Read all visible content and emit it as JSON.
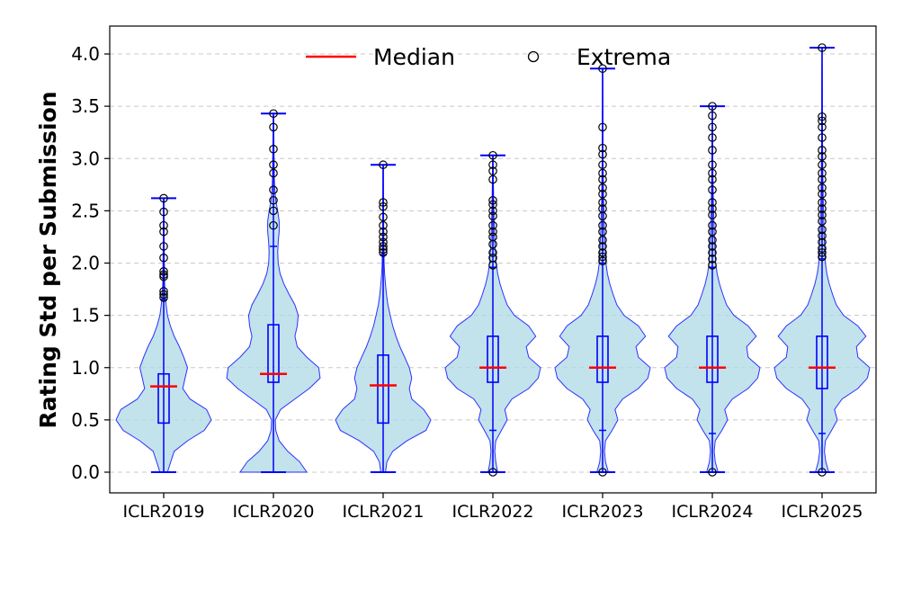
{
  "chart_data": {
    "type": "violin",
    "title": "",
    "xlabel": "",
    "ylabel": "Rating Std per Submission",
    "ylim": [
      -0.2,
      4.3
    ],
    "yticks": [
      "0.0",
      "0.5",
      "1.0",
      "1.5",
      "2.0",
      "2.5",
      "3.0",
      "3.5",
      "4.0"
    ],
    "grid": "horizontal dashed",
    "legend": {
      "placement": "top-center",
      "entries": [
        {
          "label": "Median",
          "marker": "line",
          "color": "#ff0000"
        },
        {
          "label": "Extrema",
          "marker": "circle",
          "color": "#000000"
        }
      ]
    },
    "colors": {
      "violin_fill": "#add8e6",
      "violin_edge": "#0000ff",
      "box": "#0000ff",
      "median": "#ff0000"
    },
    "categories": [
      "ICLR2019",
      "ICLR2020",
      "ICLR2021",
      "ICLR2022",
      "ICLR2023",
      "ICLR2024",
      "ICLR2025"
    ],
    "series": [
      {
        "category": "ICLR2019",
        "min": 0.0,
        "q1": 0.47,
        "median": 0.82,
        "q3": 0.94,
        "max": 2.62,
        "whisker_low": 0.0,
        "whisker_high": 1.65,
        "outliers": [
          1.67,
          1.7,
          1.73,
          1.87,
          1.89,
          1.92,
          2.05,
          2.16,
          2.3,
          2.36,
          2.49,
          2.62
        ],
        "density": [
          [
            0.0,
            0.08
          ],
          [
            0.1,
            0.15
          ],
          [
            0.2,
            0.22
          ],
          [
            0.3,
            0.5
          ],
          [
            0.4,
            0.85
          ],
          [
            0.5,
            1.0
          ],
          [
            0.6,
            0.9
          ],
          [
            0.7,
            0.55
          ],
          [
            0.8,
            0.4
          ],
          [
            0.9,
            0.45
          ],
          [
            1.0,
            0.5
          ],
          [
            1.1,
            0.42
          ],
          [
            1.2,
            0.33
          ],
          [
            1.3,
            0.22
          ],
          [
            1.4,
            0.14
          ],
          [
            1.5,
            0.08
          ],
          [
            1.6,
            0.05
          ],
          [
            1.7,
            0.03
          ],
          [
            1.8,
            0.02
          ],
          [
            2.0,
            0.015
          ],
          [
            2.2,
            0.01
          ],
          [
            2.4,
            0.008
          ],
          [
            2.62,
            0.006
          ]
        ]
      },
      {
        "category": "ICLR2020",
        "min": 0.0,
        "q1": 0.86,
        "median": 0.94,
        "q3": 1.41,
        "max": 3.43,
        "whisker_low": 0.0,
        "whisker_high": 2.16,
        "outliers": [
          2.36,
          2.5,
          2.6,
          2.7,
          2.86,
          2.94,
          3.09,
          3.3,
          3.43
        ],
        "density": [
          [
            0.0,
            0.7
          ],
          [
            0.1,
            0.55
          ],
          [
            0.2,
            0.3
          ],
          [
            0.3,
            0.12
          ],
          [
            0.4,
            0.05
          ],
          [
            0.5,
            0.04
          ],
          [
            0.6,
            0.15
          ],
          [
            0.7,
            0.45
          ],
          [
            0.8,
            0.75
          ],
          [
            0.9,
            0.98
          ],
          [
            1.0,
            0.95
          ],
          [
            1.1,
            0.7
          ],
          [
            1.2,
            0.5
          ],
          [
            1.3,
            0.45
          ],
          [
            1.4,
            0.5
          ],
          [
            1.5,
            0.52
          ],
          [
            1.6,
            0.45
          ],
          [
            1.7,
            0.33
          ],
          [
            1.8,
            0.22
          ],
          [
            1.9,
            0.14
          ],
          [
            2.0,
            0.1
          ],
          [
            2.1,
            0.09
          ],
          [
            2.2,
            0.1
          ],
          [
            2.3,
            0.12
          ],
          [
            2.4,
            0.12
          ],
          [
            2.5,
            0.09
          ],
          [
            2.6,
            0.05
          ],
          [
            2.7,
            0.03
          ],
          [
            2.8,
            0.02
          ],
          [
            3.0,
            0.015
          ],
          [
            3.2,
            0.01
          ],
          [
            3.43,
            0.006
          ]
        ]
      },
      {
        "category": "ICLR2021",
        "min": 0.0,
        "q1": 0.47,
        "median": 0.83,
        "q3": 1.12,
        "max": 2.94,
        "whisker_low": 0.0,
        "whisker_high": 2.08,
        "outliers": [
          2.1,
          2.13,
          2.16,
          2.2,
          2.25,
          2.3,
          2.36,
          2.44,
          2.54,
          2.58,
          2.94
        ],
        "density": [
          [
            0.0,
            0.05
          ],
          [
            0.1,
            0.08
          ],
          [
            0.2,
            0.2
          ],
          [
            0.3,
            0.5
          ],
          [
            0.4,
            0.9
          ],
          [
            0.5,
            1.0
          ],
          [
            0.6,
            0.85
          ],
          [
            0.7,
            0.6
          ],
          [
            0.8,
            0.55
          ],
          [
            0.9,
            0.6
          ],
          [
            1.0,
            0.55
          ],
          [
            1.1,
            0.45
          ],
          [
            1.2,
            0.35
          ],
          [
            1.3,
            0.27
          ],
          [
            1.4,
            0.2
          ],
          [
            1.5,
            0.15
          ],
          [
            1.6,
            0.1
          ],
          [
            1.7,
            0.07
          ],
          [
            1.8,
            0.05
          ],
          [
            1.9,
            0.03
          ],
          [
            2.0,
            0.02
          ],
          [
            2.2,
            0.015
          ],
          [
            2.5,
            0.01
          ],
          [
            2.94,
            0.005
          ]
        ]
      },
      {
        "category": "ICLR2022",
        "min": 0.0,
        "q1": 0.86,
        "median": 1.0,
        "q3": 1.3,
        "max": 3.03,
        "whisker_low": 0.4,
        "whisker_high": 1.96,
        "outliers": [
          0.0,
          1.98,
          2.05,
          2.1,
          2.18,
          2.25,
          2.3,
          2.36,
          2.45,
          2.5,
          2.56,
          2.6,
          2.8,
          2.88,
          2.94,
          3.03
        ],
        "density": [
          [
            0.0,
            0.1
          ],
          [
            0.1,
            0.06
          ],
          [
            0.2,
            0.04
          ],
          [
            0.3,
            0.06
          ],
          [
            0.4,
            0.18
          ],
          [
            0.5,
            0.3
          ],
          [
            0.6,
            0.25
          ],
          [
            0.7,
            0.4
          ],
          [
            0.8,
            0.75
          ],
          [
            0.9,
            0.95
          ],
          [
            1.0,
            1.0
          ],
          [
            1.1,
            0.75
          ],
          [
            1.2,
            0.7
          ],
          [
            1.3,
            0.9
          ],
          [
            1.4,
            0.75
          ],
          [
            1.5,
            0.45
          ],
          [
            1.6,
            0.3
          ],
          [
            1.7,
            0.22
          ],
          [
            1.8,
            0.15
          ],
          [
            1.9,
            0.1
          ],
          [
            2.0,
            0.07
          ],
          [
            2.2,
            0.04
          ],
          [
            2.5,
            0.02
          ],
          [
            2.8,
            0.01
          ],
          [
            3.03,
            0.005
          ]
        ]
      },
      {
        "category": "ICLR2023",
        "min": 0.0,
        "q1": 0.86,
        "median": 1.0,
        "q3": 1.3,
        "max": 3.86,
        "whisker_low": 0.4,
        "whisker_high": 2.0,
        "outliers": [
          0.0,
          2.02,
          2.06,
          2.1,
          2.16,
          2.22,
          2.3,
          2.36,
          2.45,
          2.52,
          2.58,
          2.66,
          2.72,
          2.8,
          2.86,
          2.94,
          3.04,
          3.1,
          3.3,
          3.86
        ],
        "density": [
          [
            0.0,
            0.12
          ],
          [
            0.1,
            0.06
          ],
          [
            0.2,
            0.04
          ],
          [
            0.3,
            0.06
          ],
          [
            0.4,
            0.2
          ],
          [
            0.5,
            0.32
          ],
          [
            0.6,
            0.26
          ],
          [
            0.7,
            0.42
          ],
          [
            0.8,
            0.75
          ],
          [
            0.9,
            0.95
          ],
          [
            1.0,
            1.0
          ],
          [
            1.1,
            0.75
          ],
          [
            1.2,
            0.7
          ],
          [
            1.3,
            0.9
          ],
          [
            1.4,
            0.75
          ],
          [
            1.5,
            0.45
          ],
          [
            1.6,
            0.3
          ],
          [
            1.7,
            0.22
          ],
          [
            1.8,
            0.15
          ],
          [
            1.9,
            0.1
          ],
          [
            2.0,
            0.07
          ],
          [
            2.3,
            0.04
          ],
          [
            2.6,
            0.02
          ],
          [
            3.0,
            0.01
          ],
          [
            3.86,
            0.004
          ]
        ]
      },
      {
        "category": "ICLR2024",
        "min": 0.0,
        "q1": 0.86,
        "median": 1.0,
        "q3": 1.3,
        "max": 3.5,
        "whisker_low": 0.37,
        "whisker_high": 1.96,
        "outliers": [
          0.0,
          1.98,
          2.04,
          2.1,
          2.16,
          2.22,
          2.3,
          2.36,
          2.46,
          2.52,
          2.58,
          2.7,
          2.8,
          2.86,
          2.94,
          3.08,
          3.2,
          3.3,
          3.41,
          3.5
        ],
        "density": [
          [
            0.0,
            0.12
          ],
          [
            0.1,
            0.06
          ],
          [
            0.2,
            0.04
          ],
          [
            0.3,
            0.06
          ],
          [
            0.4,
            0.2
          ],
          [
            0.5,
            0.32
          ],
          [
            0.6,
            0.26
          ],
          [
            0.7,
            0.42
          ],
          [
            0.8,
            0.75
          ],
          [
            0.9,
            0.95
          ],
          [
            1.0,
            1.0
          ],
          [
            1.1,
            0.75
          ],
          [
            1.2,
            0.72
          ],
          [
            1.3,
            0.92
          ],
          [
            1.4,
            0.75
          ],
          [
            1.5,
            0.45
          ],
          [
            1.6,
            0.3
          ],
          [
            1.7,
            0.22
          ],
          [
            1.8,
            0.15
          ],
          [
            1.9,
            0.1
          ],
          [
            2.0,
            0.07
          ],
          [
            2.3,
            0.04
          ],
          [
            2.6,
            0.02
          ],
          [
            3.0,
            0.01
          ],
          [
            3.5,
            0.004
          ]
        ]
      },
      {
        "category": "ICLR2025",
        "min": 0.0,
        "q1": 0.8,
        "median": 1.0,
        "q3": 1.3,
        "max": 4.06,
        "whisker_low": 0.37,
        "whisker_high": 2.04,
        "outliers": [
          0.0,
          2.06,
          2.1,
          2.14,
          2.2,
          2.26,
          2.32,
          2.4,
          2.46,
          2.52,
          2.58,
          2.66,
          2.72,
          2.8,
          2.86,
          2.94,
          3.02,
          3.08,
          3.2,
          3.3,
          3.36,
          3.4,
          4.06
        ],
        "density": [
          [
            0.0,
            0.14
          ],
          [
            0.1,
            0.08
          ],
          [
            0.2,
            0.05
          ],
          [
            0.3,
            0.07
          ],
          [
            0.4,
            0.2
          ],
          [
            0.5,
            0.32
          ],
          [
            0.6,
            0.26
          ],
          [
            0.7,
            0.42
          ],
          [
            0.8,
            0.75
          ],
          [
            0.9,
            0.95
          ],
          [
            1.0,
            1.0
          ],
          [
            1.1,
            0.75
          ],
          [
            1.2,
            0.72
          ],
          [
            1.3,
            0.92
          ],
          [
            1.4,
            0.75
          ],
          [
            1.5,
            0.45
          ],
          [
            1.6,
            0.3
          ],
          [
            1.7,
            0.22
          ],
          [
            1.8,
            0.15
          ],
          [
            1.9,
            0.1
          ],
          [
            2.0,
            0.07
          ],
          [
            2.3,
            0.04
          ],
          [
            2.7,
            0.02
          ],
          [
            3.2,
            0.01
          ],
          [
            4.06,
            0.004
          ]
        ]
      }
    ]
  }
}
